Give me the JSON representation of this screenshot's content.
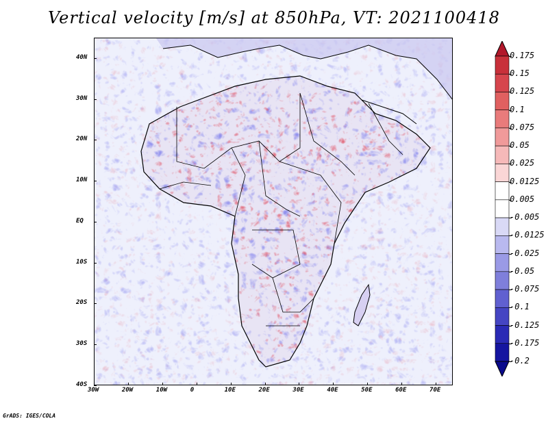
{
  "title": "Vertical velocity [m/s] at 850hPa, VT: 2021100418",
  "credit": "GrADS: IGES/COLA",
  "map": {
    "region": "Africa",
    "lon_range": [
      -30,
      75
    ],
    "lat_range": [
      -40,
      45
    ],
    "lon_ticks": [
      "30W",
      "20W",
      "10W",
      "0",
      "10E",
      "20E",
      "30E",
      "40E",
      "50E",
      "60E",
      "70E"
    ],
    "lat_ticks": [
      "40N",
      "30N",
      "20N",
      "10N",
      "EQ",
      "10S",
      "20S",
      "30S",
      "40S"
    ],
    "field": "noisy vertical velocity shading, strong variability over land"
  },
  "colorbar": {
    "labels": [
      "0.175",
      "0.15",
      "0.125",
      "0.1",
      "0.075",
      "0.05",
      "0.025",
      "0.0125",
      "0.005",
      "-0.005",
      "-0.0125",
      "-0.025",
      "-0.05",
      "-0.075",
      "-0.1",
      "-0.125",
      "-0.175",
      "-0.2"
    ],
    "colors": [
      "#b2182b",
      "#c8303a",
      "#d6454d",
      "#e06060",
      "#e97b7b",
      "#f09a9a",
      "#f6b9b9",
      "#fad6d6",
      "#ffffff",
      "#ffffff",
      "#d9d9f6",
      "#b9b9ef",
      "#9a9ae6",
      "#7f7fdb",
      "#6060d0",
      "#4545c3",
      "#2a2ab5",
      "#1515a0",
      "#0a0a8c"
    ]
  }
}
